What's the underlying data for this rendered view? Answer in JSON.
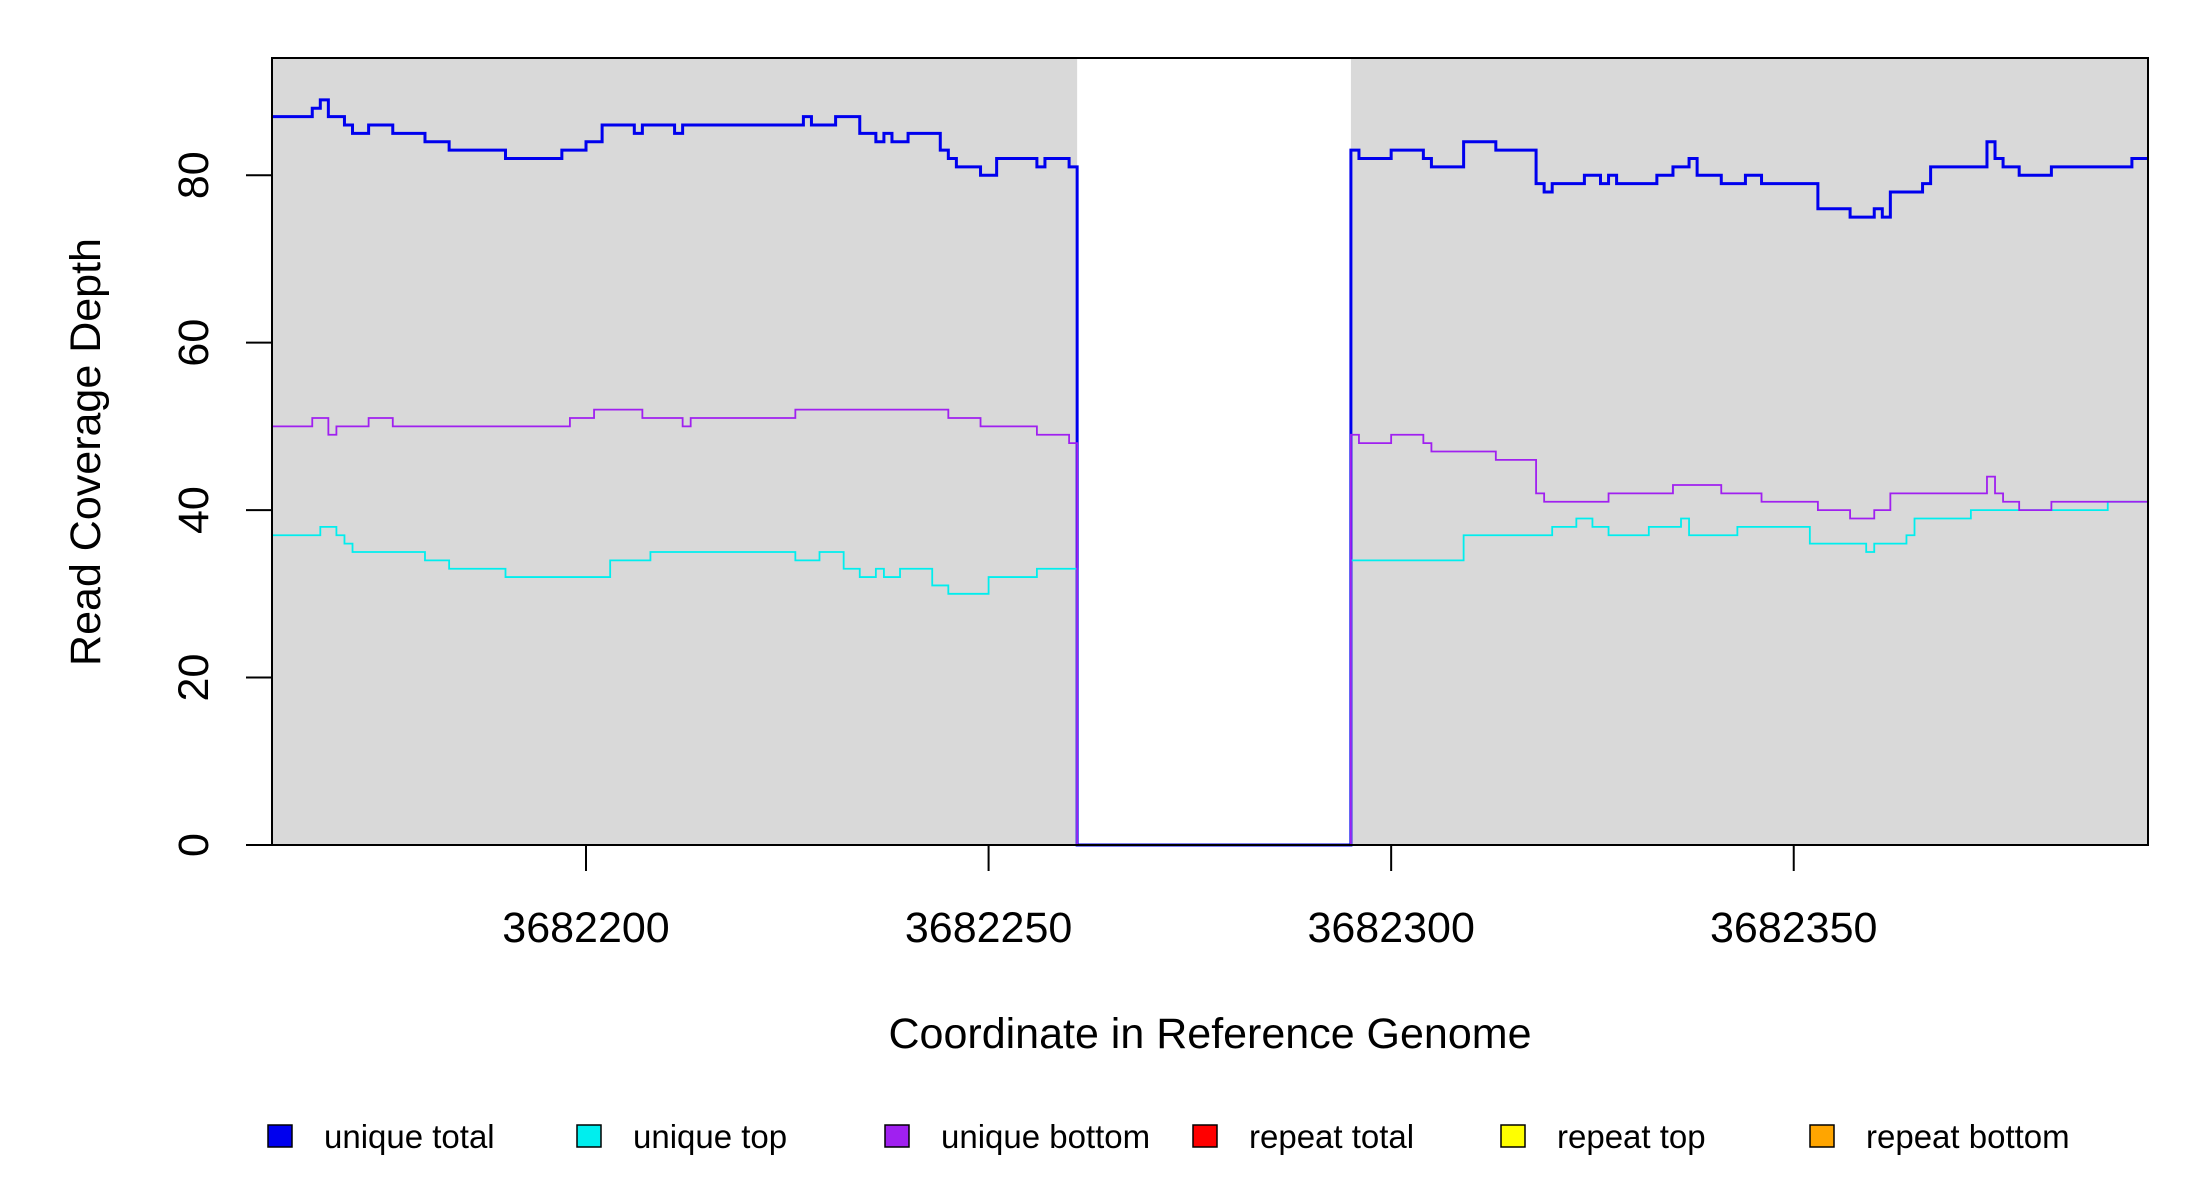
{
  "chart_data": {
    "type": "line",
    "xlabel": "Coordinate in Reference Genome",
    "ylabel": "Read Coverage Depth",
    "xlim": [
      3682161,
      3682394
    ],
    "ylim": [
      0,
      94
    ],
    "x_ticks": [
      3682200,
      3682250,
      3682300,
      3682350
    ],
    "x_tick_labels": [
      "3682200",
      "3682250",
      "3682300",
      "3682350"
    ],
    "y_ticks": [
      0,
      20,
      40,
      60,
      80
    ],
    "y_tick_labels": [
      "0",
      "20",
      "40",
      "60",
      "80"
    ],
    "background_color": "#d9d9d9",
    "highlighted_regions": [
      [
        3682161,
        3682261
      ],
      [
        3682295,
        3682394
      ]
    ],
    "series": [
      {
        "name": "unique total",
        "color": "#0000ee",
        "points": [
          [
            3682161,
            87
          ],
          [
            3682166,
            88
          ],
          [
            3682167,
            89
          ],
          [
            3682168,
            87
          ],
          [
            3682170,
            86
          ],
          [
            3682171,
            85
          ],
          [
            3682173,
            86
          ],
          [
            3682176,
            85
          ],
          [
            3682180,
            84
          ],
          [
            3682183,
            83
          ],
          [
            3682190,
            82
          ],
          [
            3682197,
            83
          ],
          [
            3682200,
            84
          ],
          [
            3682202,
            86
          ],
          [
            3682206,
            85
          ],
          [
            3682207,
            86
          ],
          [
            3682211,
            85
          ],
          [
            3682212,
            86
          ],
          [
            3682227,
            87
          ],
          [
            3682228,
            86
          ],
          [
            3682231,
            87
          ],
          [
            3682234,
            85
          ],
          [
            3682236,
            84
          ],
          [
            3682237,
            85
          ],
          [
            3682238,
            84
          ],
          [
            3682240,
            85
          ],
          [
            3682244,
            83
          ],
          [
            3682245,
            82
          ],
          [
            3682246,
            81
          ],
          [
            3682249,
            80
          ],
          [
            3682251,
            82
          ],
          [
            3682256,
            81
          ],
          [
            3682257,
            82
          ],
          [
            3682260,
            81
          ],
          [
            3682261,
            0
          ],
          [
            3682295,
            83
          ],
          [
            3682296,
            82
          ],
          [
            3682300,
            83
          ],
          [
            3682304,
            82
          ],
          [
            3682305,
            81
          ],
          [
            3682309,
            84
          ],
          [
            3682313,
            83
          ],
          [
            3682318,
            79
          ],
          [
            3682319,
            78
          ],
          [
            3682320,
            79
          ],
          [
            3682324,
            80
          ],
          [
            3682326,
            79
          ],
          [
            3682327,
            80
          ],
          [
            3682328,
            79
          ],
          [
            3682333,
            80
          ],
          [
            3682335,
            81
          ],
          [
            3682337,
            82
          ],
          [
            3682338,
            80
          ],
          [
            3682341,
            79
          ],
          [
            3682344,
            80
          ],
          [
            3682346,
            79
          ],
          [
            3682353,
            76
          ],
          [
            3682357,
            75
          ],
          [
            3682360,
            76
          ],
          [
            3682361,
            75
          ],
          [
            3682362,
            78
          ],
          [
            3682366,
            79
          ],
          [
            3682367,
            81
          ],
          [
            3682374,
            84
          ],
          [
            3682375,
            82
          ],
          [
            3682376,
            81
          ],
          [
            3682378,
            80
          ],
          [
            3682382,
            81
          ],
          [
            3682392,
            82
          ],
          [
            3682394,
            82
          ]
        ]
      },
      {
        "name": "unique top",
        "color": "#00eeee",
        "points": [
          [
            3682161,
            37
          ],
          [
            3682167,
            38
          ],
          [
            3682169,
            37
          ],
          [
            3682170,
            36
          ],
          [
            3682171,
            35
          ],
          [
            3682180,
            34
          ],
          [
            3682183,
            33
          ],
          [
            3682190,
            32
          ],
          [
            3682203,
            34
          ],
          [
            3682208,
            35
          ],
          [
            3682226,
            34
          ],
          [
            3682229,
            35
          ],
          [
            3682232,
            33
          ],
          [
            3682234,
            32
          ],
          [
            3682236,
            33
          ],
          [
            3682237,
            32
          ],
          [
            3682239,
            33
          ],
          [
            3682243,
            31
          ],
          [
            3682245,
            30
          ],
          [
            3682250,
            32
          ],
          [
            3682256,
            33
          ],
          [
            3682260,
            33
          ],
          [
            3682261,
            0
          ],
          [
            3682295,
            34
          ],
          [
            3682309,
            37
          ],
          [
            3682320,
            38
          ],
          [
            3682323,
            39
          ],
          [
            3682325,
            38
          ],
          [
            3682327,
            37
          ],
          [
            3682332,
            38
          ],
          [
            3682336,
            39
          ],
          [
            3682337,
            37
          ],
          [
            3682343,
            38
          ],
          [
            3682352,
            36
          ],
          [
            3682359,
            35
          ],
          [
            3682360,
            36
          ],
          [
            3682364,
            37
          ],
          [
            3682365,
            39
          ],
          [
            3682372,
            40
          ],
          [
            3682389,
            41
          ],
          [
            3682394,
            41
          ]
        ]
      },
      {
        "name": "unique bottom",
        "color": "#a020f0",
        "points": [
          [
            3682161,
            50
          ],
          [
            3682166,
            51
          ],
          [
            3682168,
            49
          ],
          [
            3682169,
            50
          ],
          [
            3682173,
            51
          ],
          [
            3682176,
            50
          ],
          [
            3682198,
            51
          ],
          [
            3682201,
            52
          ],
          [
            3682207,
            51
          ],
          [
            3682212,
            50
          ],
          [
            3682213,
            51
          ],
          [
            3682226,
            52
          ],
          [
            3682245,
            51
          ],
          [
            3682249,
            50
          ],
          [
            3682256,
            49
          ],
          [
            3682260,
            48
          ],
          [
            3682261,
            0
          ],
          [
            3682295,
            49
          ],
          [
            3682296,
            48
          ],
          [
            3682300,
            49
          ],
          [
            3682304,
            48
          ],
          [
            3682305,
            47
          ],
          [
            3682313,
            46
          ],
          [
            3682318,
            42
          ],
          [
            3682319,
            41
          ],
          [
            3682327,
            42
          ],
          [
            3682335,
            43
          ],
          [
            3682341,
            42
          ],
          [
            3682346,
            41
          ],
          [
            3682353,
            40
          ],
          [
            3682357,
            39
          ],
          [
            3682360,
            40
          ],
          [
            3682362,
            42
          ],
          [
            3682374,
            44
          ],
          [
            3682375,
            42
          ],
          [
            3682376,
            41
          ],
          [
            3682378,
            40
          ],
          [
            3682382,
            41
          ],
          [
            3682394,
            41
          ]
        ]
      },
      {
        "name": "repeat total",
        "color": "#ff0000",
        "points": [
          [
            3682161,
            0
          ],
          [
            3682394,
            0
          ]
        ]
      },
      {
        "name": "repeat top",
        "color": "#ffff00",
        "points": [
          [
            3682161,
            0
          ],
          [
            3682394,
            0
          ]
        ]
      },
      {
        "name": "repeat bottom",
        "color": "#ffa500",
        "points": [
          [
            3682161,
            0
          ],
          [
            3682394,
            0
          ]
        ]
      }
    ],
    "legend": [
      {
        "label": "unique total",
        "color": "#0000ee"
      },
      {
        "label": "unique top",
        "color": "#00eeee"
      },
      {
        "label": "unique bottom",
        "color": "#a020f0"
      },
      {
        "label": "repeat total",
        "color": "#ff0000"
      },
      {
        "label": "repeat top",
        "color": "#ffff00"
      },
      {
        "label": "repeat bottom",
        "color": "#ffa500"
      }
    ],
    "legend_position": "bottom"
  }
}
